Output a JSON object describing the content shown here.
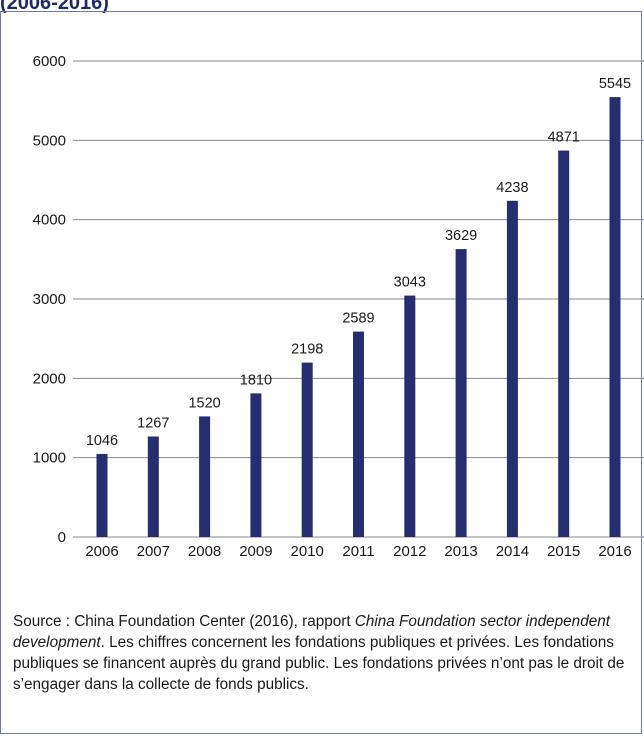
{
  "header": {
    "title_fragment": "(2006-2016)"
  },
  "colors": {
    "bar": "#252e6e",
    "grid": "#8a8a8a",
    "frame": "#6a7ab0"
  },
  "chart_data": {
    "type": "bar",
    "categories": [
      "2006",
      "2007",
      "2008",
      "2009",
      "2010",
      "2011",
      "2012",
      "2013",
      "2014",
      "2015",
      "2016"
    ],
    "values": [
      1046,
      1267,
      1520,
      1810,
      2198,
      2589,
      3043,
      3629,
      4238,
      4871,
      5545
    ],
    "ylim": [
      0,
      6000
    ],
    "yticks": [
      "0",
      "1000",
      "2000",
      "3000",
      "4000",
      "5000",
      "6000"
    ],
    "grid": true,
    "data_labels": true
  },
  "source": {
    "prefix": "Source : China Foundation Center (2016), rapport ",
    "report_title": "China Foundation sector independent development",
    "suffix": ". Les chiffres concernent les fondations publiques et privées. Les fondations publiques se financent auprès du grand public. Les fondations privées n’ont pas le droit de s’engager dans la collecte de fonds publics."
  }
}
